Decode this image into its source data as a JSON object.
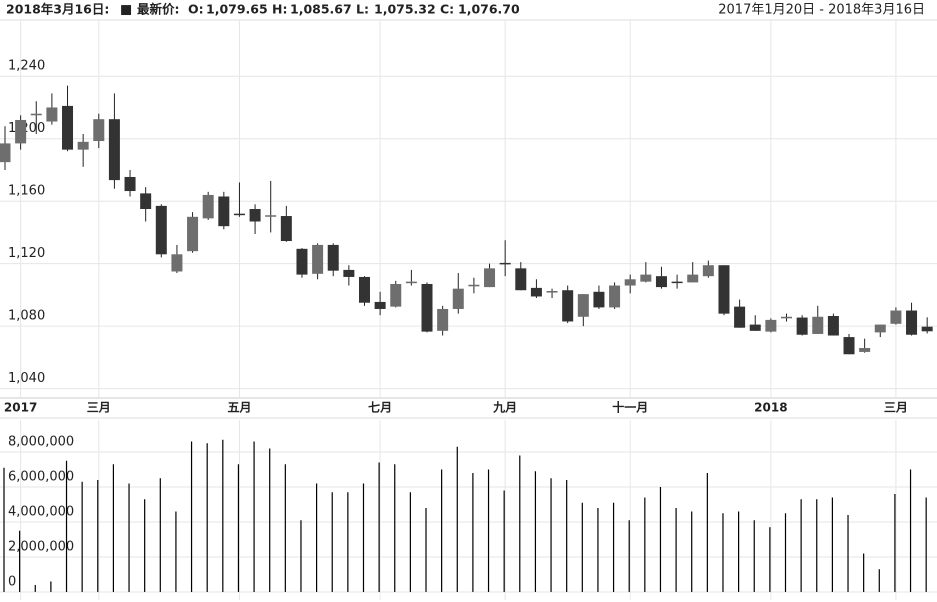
{
  "header": {
    "date": "2018年3月16日:",
    "marker": "■",
    "latest_label": "最新价:",
    "items": [
      {
        "label": "O:",
        "value": "1,079.65"
      },
      {
        "label": "H:",
        "value": "1,085.67"
      },
      {
        "label": "L:",
        "value": "1,075.32"
      },
      {
        "label": "C:",
        "value": "1,076.70"
      }
    ],
    "range": "2017年1月20日 - 2018年3月16日"
  },
  "chart_data": [
    {
      "type": "candlestick",
      "categories": [
        null,
        "2017",
        null,
        null,
        null,
        null,
        "三月",
        null,
        null,
        null,
        null,
        null,
        null,
        null,
        null,
        "五月",
        null,
        null,
        null,
        null,
        null,
        null,
        null,
        null,
        "七月",
        null,
        null,
        null,
        null,
        null,
        null,
        null,
        "九月",
        null,
        null,
        null,
        null,
        null,
        null,
        null,
        "十一月",
        null,
        null,
        null,
        null,
        null,
        null,
        null,
        null,
        "2018",
        null,
        null,
        null,
        null,
        null,
        null,
        null,
        "三月",
        null,
        null
      ],
      "open": [
        1185,
        1197,
        1215,
        1211,
        1221,
        1193,
        1198.5,
        1212.5,
        1175.5,
        1165,
        1157,
        1115,
        1128,
        1149,
        1163,
        1152,
        1155,
        1150.5,
        1150.5,
        1129.5,
        1113.5,
        1132,
        1116,
        1111.5,
        1095.5,
        1092.5,
        1107.5,
        1107,
        1077,
        1091,
        1105.5,
        1105,
        1120.5,
        1117,
        1104.5,
        1101.5,
        1103,
        1086,
        1102,
        1092,
        1106,
        1108.5,
        1112,
        1108.5,
        1108,
        1112,
        1119,
        1092.5,
        1081,
        1076.5,
        1085,
        1085.5,
        1075,
        1086.5,
        1073,
        1063.5,
        1076,
        1081.5,
        1090,
        1079.65
      ],
      "high": [
        1208,
        1215,
        1224,
        1229,
        1234,
        1203,
        1216,
        1229,
        1180,
        1169,
        1158,
        1132,
        1153,
        1166,
        1166,
        1172,
        1158,
        1173,
        1157,
        1130,
        1133,
        1133,
        1119,
        1112,
        1102,
        1109,
        1116,
        1108,
        1093,
        1114,
        1111,
        1120,
        1135,
        1121,
        1110,
        1104,
        1106,
        1100.5,
        1106,
        1108,
        1113,
        1121,
        1118,
        1113,
        1121,
        1122,
        1119,
        1097,
        1087,
        1085,
        1088,
        1087,
        1093,
        1088,
        1075,
        1072,
        1081,
        1092,
        1095,
        1085.67
      ],
      "low": [
        1180,
        1193,
        1203,
        1209,
        1192,
        1182,
        1194,
        1168,
        1163,
        1147,
        1124,
        1114,
        1127,
        1148,
        1142,
        1150,
        1139,
        1140,
        1134,
        1111,
        1110,
        1112,
        1106,
        1093,
        1087,
        1092,
        1106,
        1076,
        1074,
        1088,
        1101,
        1105,
        1112,
        1103,
        1098,
        1098,
        1082,
        1080,
        1091,
        1091,
        1101,
        1108,
        1104,
        1104,
        1108,
        1111,
        1087,
        1079,
        1077,
        1076,
        1083,
        1074,
        1075,
        1074,
        1062,
        1063,
        1073,
        1081,
        1074,
        1075.32
      ],
      "close": [
        1197,
        1212,
        1216,
        1220,
        1193,
        1198,
        1212.5,
        1173.5,
        1166.5,
        1155,
        1126,
        1126,
        1150,
        1164,
        1144,
        1151.5,
        1147,
        1151,
        1134.5,
        1113,
        1132,
        1115.5,
        1111.5,
        1095,
        1091,
        1107,
        1108.5,
        1076.5,
        1091,
        1104,
        1106.5,
        1117,
        1120,
        1103,
        1099,
        1102.5,
        1083,
        1100.5,
        1092,
        1106,
        1110,
        1113,
        1105,
        1108,
        1113,
        1119,
        1088,
        1079,
        1077,
        1084,
        1086,
        1074.5,
        1086,
        1074,
        1062,
        1066,
        1081,
        1090,
        1074.5,
        1076.7
      ],
      "up_color": "#6e6e6e",
      "down_color": "#333333",
      "ylim": [
        1034,
        1276
      ],
      "yticks": [
        {
          "value": 1040,
          "label": "1,040"
        },
        {
          "value": 1080,
          "label": "1,080"
        },
        {
          "value": 1120,
          "label": "1,120"
        },
        {
          "value": 1160,
          "label": "1,160"
        },
        {
          "value": 1200,
          "label": "1,200"
        },
        {
          "value": 1240,
          "label": "1,240"
        }
      ],
      "grid": true
    },
    {
      "type": "bar",
      "values": [
        7100000,
        3500000,
        400000,
        600000,
        7500000,
        6300000,
        6400000,
        7300000,
        6200000,
        5300000,
        6500000,
        4600000,
        8600000,
        8500000,
        8700000,
        7300000,
        8600000,
        8200000,
        7300000,
        4100000,
        6200000,
        5700000,
        5700000,
        6200000,
        7400000,
        7300000,
        5700000,
        4800000,
        7000000,
        8300000,
        6800000,
        7000000,
        5800000,
        7800000,
        6900000,
        6500000,
        6400000,
        5100000,
        4800000,
        5100000,
        4100000,
        5400000,
        6000000,
        4800000,
        4600000,
        6800000,
        4500000,
        4600000,
        4100000,
        3700000,
        4500000,
        5300000,
        5300000,
        5400000,
        4400000,
        2200000,
        1300000,
        5600000,
        7000000,
        5400000
      ],
      "color": "#000000",
      "ylim": [
        -460000,
        9830000
      ],
      "yticks": [
        0,
        {
          "value": 2000000,
          "label": "2,000,000"
        },
        {
          "value": 4000000,
          "label": "4,000,000"
        },
        {
          "value": 6000000,
          "label": "6,000,000"
        },
        {
          "value": 8000000,
          "label": "8,000,000"
        }
      ],
      "grid": true
    }
  ]
}
